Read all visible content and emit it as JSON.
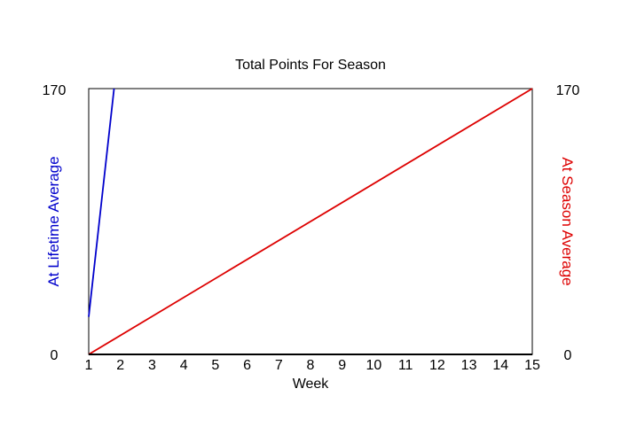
{
  "chart_data": {
    "type": "line",
    "title": "Total Points For Season",
    "xlabel": "Week",
    "ylabel_left": "At Lifetime Average",
    "ylabel_right": "At Season Average",
    "x_ticks": [
      "1",
      "2",
      "3",
      "4",
      "5",
      "6",
      "7",
      "8",
      "9",
      "10",
      "11",
      "12",
      "13",
      "14",
      "15"
    ],
    "xlim": [
      1,
      15
    ],
    "ylim_left": [
      0,
      170
    ],
    "ylim_right": [
      0,
      170
    ],
    "y_ticks_left": [
      "170",
      "0"
    ],
    "y_ticks_right": [
      "170",
      "0"
    ],
    "grid": false,
    "series": [
      {
        "axis": "left",
        "color": "#0000cc",
        "x": [
          1,
          1.8
        ],
        "y": [
          24,
          170
        ]
      },
      {
        "axis": "right",
        "color": "#dd0000",
        "x": [
          1,
          15
        ],
        "y": [
          0,
          170
        ]
      }
    ]
  }
}
